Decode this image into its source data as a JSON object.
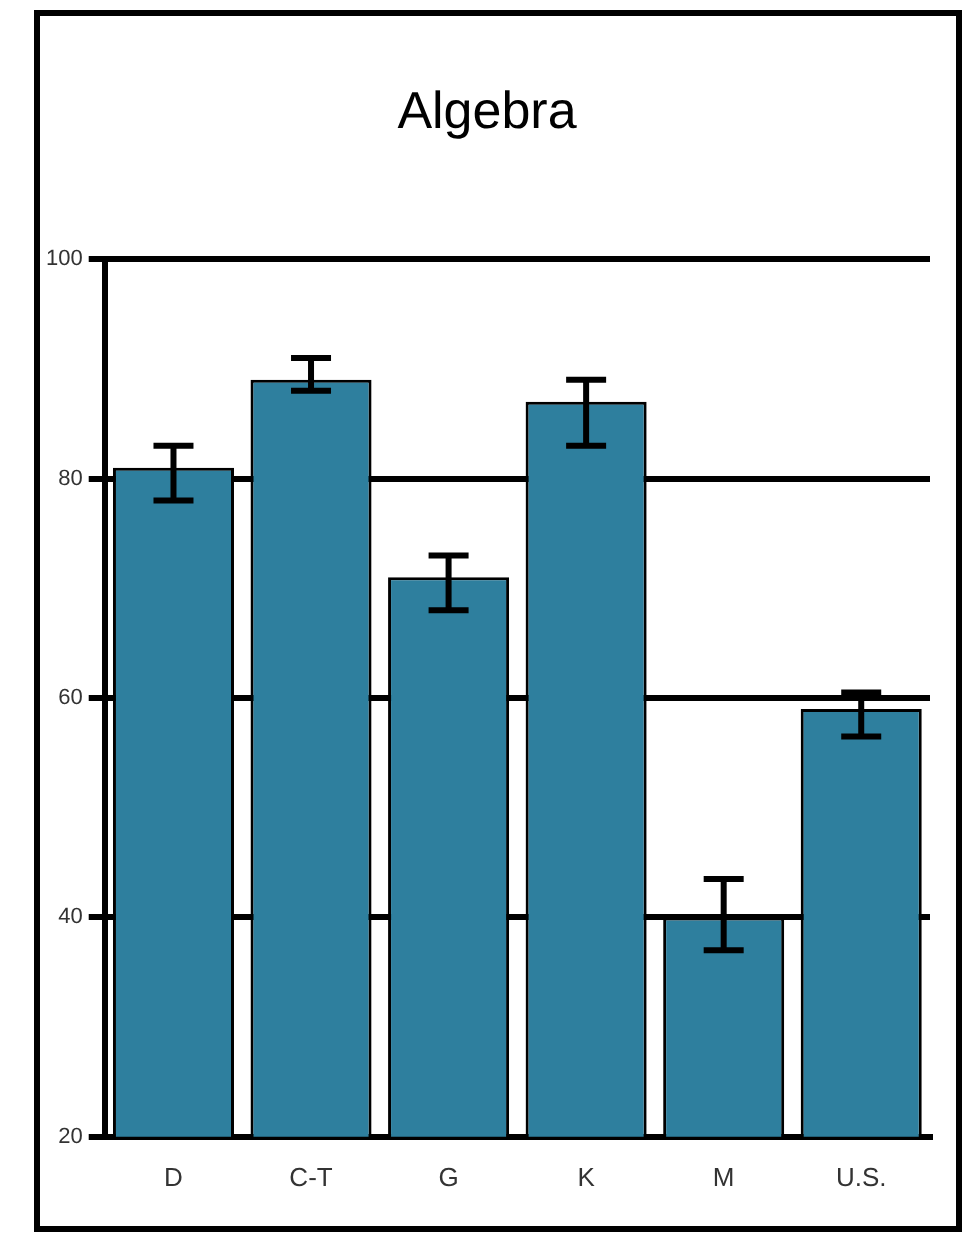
{
  "chart_data": {
    "type": "bar",
    "title": "Algebra",
    "categories": [
      "D",
      "C-T",
      "G",
      "K",
      "M",
      "U.S."
    ],
    "values": [
      81,
      89,
      71,
      87,
      40,
      59
    ],
    "errors": [
      [
        78,
        83
      ],
      [
        88,
        91
      ],
      [
        68,
        73
      ],
      [
        83,
        89
      ],
      [
        37,
        43.5
      ],
      [
        56.5,
        60.5
      ]
    ],
    "color": "#2e7f9e",
    "ylim": [
      20,
      100
    ],
    "yticks": [
      20,
      40,
      60,
      80,
      100
    ],
    "grid": "y",
    "legend": false
  }
}
